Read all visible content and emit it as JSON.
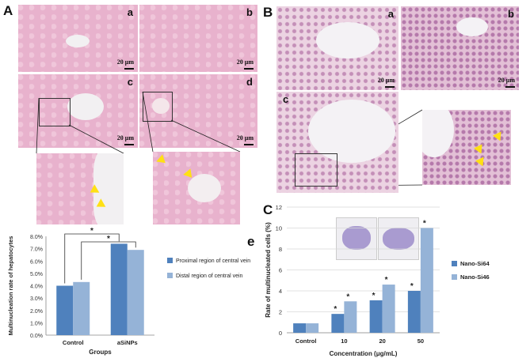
{
  "panels": {
    "A": {
      "letter": "A",
      "subs": [
        "a",
        "b",
        "c",
        "d"
      ],
      "scale_label": "20 μm"
    },
    "B": {
      "letter": "B",
      "subs": [
        "a",
        "b",
        "c"
      ],
      "scale_label": "20 μm"
    },
    "C": {
      "letter": "C"
    },
    "e": {
      "letter": "e"
    }
  },
  "colors": {
    "arrow": "#ffe014",
    "series_dark": "#4f81bd",
    "series_light": "#95b3d7"
  },
  "chart_data": [
    {
      "id": "e",
      "type": "bar",
      "title": "",
      "xlabel": "Groups",
      "ylabel": "Multinucleation rate of hepatocytes",
      "categories": [
        "Control",
        "aSiNPs"
      ],
      "series": [
        {
          "name": "Proximal region of central vein",
          "values": [
            4.0,
            7.4
          ]
        },
        {
          "name": "Distal region of central vein",
          "values": [
            4.3,
            6.9
          ]
        }
      ],
      "ylim": [
        0,
        8.0
      ],
      "yticks": [
        "0.0%",
        "1.0%",
        "2.0%",
        "3.0%",
        "4.0%",
        "5.0%",
        "6.0%",
        "7.0%",
        "8.0%"
      ],
      "annotations": [
        "*",
        "*"
      ],
      "legend": "right",
      "grid": false
    },
    {
      "id": "C",
      "type": "bar",
      "title": "",
      "xlabel": "Concentration (μg/mL)",
      "ylabel": "Rate of multinucleated cells (%)",
      "categories": [
        "Control",
        "10",
        "20",
        "50"
      ],
      "series": [
        {
          "name": "Nano-Si64",
          "values": [
            0.9,
            1.8,
            3.1,
            4.0
          ]
        },
        {
          "name": "Nano-Si46",
          "values": [
            0.9,
            3.0,
            4.6,
            10.0
          ]
        }
      ],
      "ylim": [
        0,
        12
      ],
      "yticks": [
        "0",
        "2",
        "4",
        "6",
        "8",
        "10",
        "12"
      ],
      "significance": "*",
      "legend": "right",
      "grid": true
    }
  ]
}
